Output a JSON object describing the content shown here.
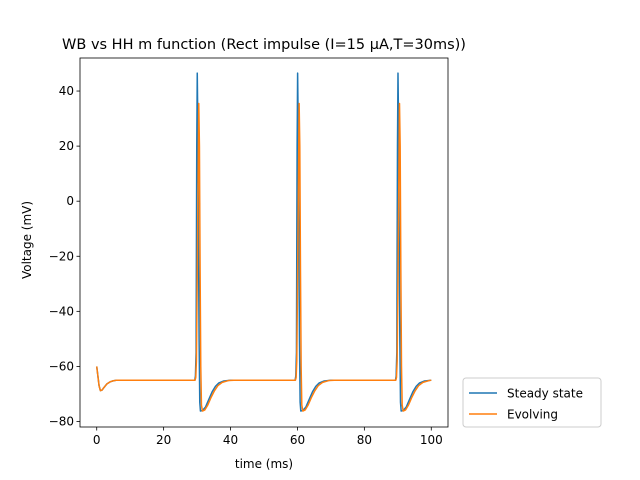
{
  "chart_data": {
    "type": "line",
    "title": "WB vs HH m function (Rect impulse (I=15 μA,T=30ms))",
    "xlabel": "time (ms)",
    "ylabel": "Voltage (mV)",
    "xlim": [
      -5,
      105
    ],
    "ylim": [
      -82,
      52
    ],
    "xticks": [
      0,
      20,
      40,
      60,
      80,
      100
    ],
    "yticks": [
      -80,
      -60,
      -40,
      -20,
      0,
      20,
      40
    ],
    "grid": false,
    "legend_placement": "outside-lower-right",
    "series": [
      {
        "name": "Steady state",
        "color": "#1f77b4",
        "points": [
          [
            0,
            -60
          ],
          [
            0.3,
            -63
          ],
          [
            0.7,
            -67
          ],
          [
            1.1,
            -68.8
          ],
          [
            1.6,
            -68.6
          ],
          [
            2.2,
            -67.6
          ],
          [
            3,
            -66.4
          ],
          [
            4,
            -65.6
          ],
          [
            5,
            -65.2
          ],
          [
            6,
            -65
          ],
          [
            29.3,
            -65
          ],
          [
            29.5,
            -63.5
          ],
          [
            29.7,
            -55
          ],
          [
            29.9,
            20
          ],
          [
            30.05,
            46.5
          ],
          [
            30.2,
            30
          ],
          [
            30.4,
            -10
          ],
          [
            30.6,
            -50
          ],
          [
            30.8,
            -73
          ],
          [
            31,
            -76.2
          ],
          [
            31.6,
            -76
          ],
          [
            32.5,
            -74.8
          ],
          [
            33.5,
            -72
          ],
          [
            34.5,
            -69.2
          ],
          [
            35.5,
            -67.2
          ],
          [
            36.5,
            -66
          ],
          [
            38,
            -65.3
          ],
          [
            40,
            -65
          ],
          [
            59.3,
            -65
          ],
          [
            59.5,
            -63.5
          ],
          [
            59.7,
            -55
          ],
          [
            59.9,
            20
          ],
          [
            60.05,
            46.5
          ],
          [
            60.2,
            30
          ],
          [
            60.4,
            -10
          ],
          [
            60.6,
            -50
          ],
          [
            60.8,
            -73
          ],
          [
            61,
            -76.2
          ],
          [
            61.6,
            -76
          ],
          [
            62.5,
            -74.8
          ],
          [
            63.5,
            -72
          ],
          [
            64.5,
            -69.2
          ],
          [
            65.5,
            -67.2
          ],
          [
            66.5,
            -66
          ],
          [
            68,
            -65.3
          ],
          [
            70,
            -65
          ],
          [
            89.3,
            -65
          ],
          [
            89.5,
            -63.5
          ],
          [
            89.7,
            -55
          ],
          [
            89.9,
            20
          ],
          [
            90.05,
            46.5
          ],
          [
            90.2,
            30
          ],
          [
            90.4,
            -10
          ],
          [
            90.6,
            -50
          ],
          [
            90.8,
            -73
          ],
          [
            91,
            -76.2
          ],
          [
            91.6,
            -76
          ],
          [
            92.5,
            -74.8
          ],
          [
            93.5,
            -72
          ],
          [
            94.5,
            -69.2
          ],
          [
            95.5,
            -67.2
          ],
          [
            96.5,
            -66
          ],
          [
            98,
            -65.3
          ],
          [
            100,
            -65
          ]
        ]
      },
      {
        "name": "Evolving",
        "color": "#ff7f0e",
        "points": [
          [
            0,
            -60
          ],
          [
            0.3,
            -63
          ],
          [
            0.7,
            -67
          ],
          [
            1.1,
            -68.8
          ],
          [
            1.6,
            -68.6
          ],
          [
            2.2,
            -67.6
          ],
          [
            3,
            -66.4
          ],
          [
            4,
            -65.6
          ],
          [
            5,
            -65.2
          ],
          [
            6,
            -65
          ],
          [
            29.4,
            -65
          ],
          [
            29.6,
            -64
          ],
          [
            29.8,
            -58
          ],
          [
            30.1,
            -20
          ],
          [
            30.5,
            35.5
          ],
          [
            30.7,
            20
          ],
          [
            30.9,
            -25
          ],
          [
            31.1,
            -60
          ],
          [
            31.3,
            -74
          ],
          [
            31.6,
            -76.2
          ],
          [
            32.3,
            -75.8
          ],
          [
            33.2,
            -74
          ],
          [
            34.2,
            -71.2
          ],
          [
            35.2,
            -68.8
          ],
          [
            36.2,
            -67
          ],
          [
            37.5,
            -65.8
          ],
          [
            39.5,
            -65.1
          ],
          [
            41,
            -65
          ],
          [
            59.4,
            -65
          ],
          [
            59.6,
            -64
          ],
          [
            59.8,
            -58
          ],
          [
            60.1,
            -20
          ],
          [
            60.5,
            35.5
          ],
          [
            60.7,
            20
          ],
          [
            60.9,
            -25
          ],
          [
            61.1,
            -60
          ],
          [
            61.3,
            -74
          ],
          [
            61.6,
            -76.2
          ],
          [
            62.3,
            -75.8
          ],
          [
            63.2,
            -74
          ],
          [
            64.2,
            -71.2
          ],
          [
            65.2,
            -68.8
          ],
          [
            66.2,
            -67
          ],
          [
            67.5,
            -65.8
          ],
          [
            69.5,
            -65.1
          ],
          [
            71,
            -65
          ],
          [
            89.4,
            -65
          ],
          [
            89.6,
            -64
          ],
          [
            89.8,
            -58
          ],
          [
            90.1,
            -20
          ],
          [
            90.5,
            35.5
          ],
          [
            90.7,
            20
          ],
          [
            90.9,
            -25
          ],
          [
            91.1,
            -60
          ],
          [
            91.3,
            -74
          ],
          [
            91.6,
            -76.2
          ],
          [
            92.3,
            -75.8
          ],
          [
            93.2,
            -74
          ],
          [
            94.2,
            -71.2
          ],
          [
            95.2,
            -68.8
          ],
          [
            96.2,
            -67
          ],
          [
            97.5,
            -65.8
          ],
          [
            99.5,
            -65.1
          ],
          [
            100,
            -65
          ]
        ]
      }
    ]
  }
}
